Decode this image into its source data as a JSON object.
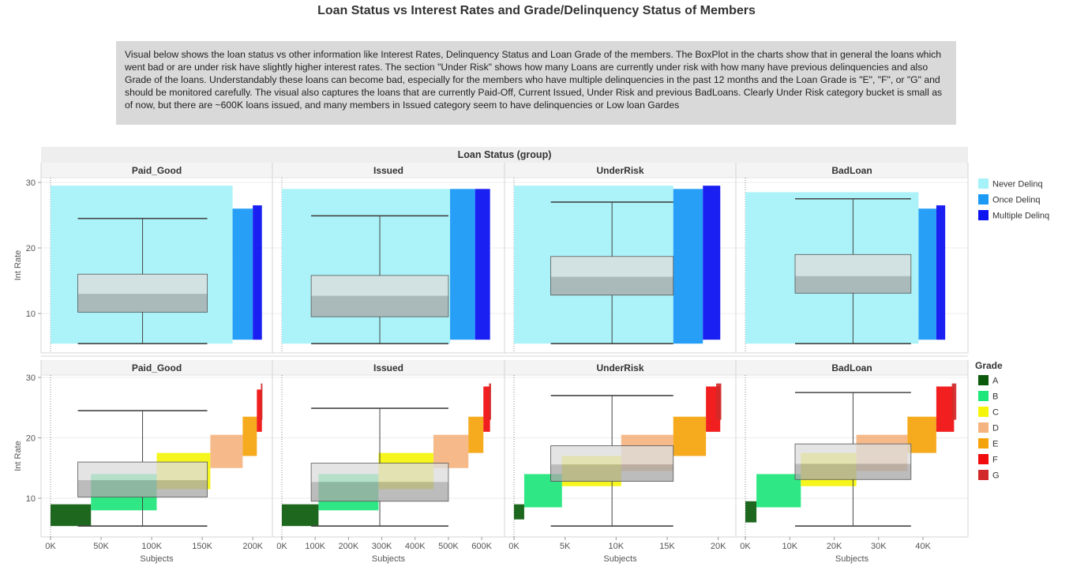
{
  "header": {
    "title": "Loan Status vs Interest Rates and Grade/Delinquency Status of Members",
    "description": "Visual below shows the loan status vs other information like Interest Rates, Delinquency Status and Loan Grade of the members. The BoxPlot in the charts show that in general the loans which went bad or are under risk have slightly higher interest rates. The section \"Under Risk\" shows how many Loans are currently under risk with how many have previous delinquencies and also Grade of the loans. Understandably these loans can become bad, especially for the members who have multiple delinquencies in the past 12 months and the Loan Grade is \"E\", \"F\", or \"G\" and should be monitored carefully. The visual also captures the loans that are currently Paid-Off, Current Issued, Under Risk and previous BadLoans. Clearly Under Risk category bucket is small as of now, but there are ~600K loans issued, and many members in Issued category seem to have delinquencies or Low loan Gardes"
  },
  "colors": {
    "Never Delinq": "#a6f2f9",
    "Once Delinq": "#1b9af5",
    "Multiple Delinq": "#0d14f0",
    "A": "#0b5a0b",
    "B": "#1de67b",
    "C": "#f5f50b",
    "D": "#f5b37f",
    "E": "#f5a30b",
    "F": "#f00c0c",
    "G": "#d22a2a"
  },
  "chart_data": [
    {
      "type": "scatter",
      "group_header": "Loan Status (group)",
      "panels": [
        "Paid_Good",
        "Issued",
        "UnderRisk",
        "BadLoan"
      ],
      "ylabel": "Int Rate",
      "ylim": [
        5,
        31
      ],
      "yticks": [
        10,
        20,
        30
      ],
      "grid": true,
      "legend": {
        "placement": "right",
        "title": "",
        "entries": [
          "Never Delinq",
          "Once Delinq",
          "Multiple Delinq"
        ]
      },
      "bands": [
        {
          "panel": "Paid_Good",
          "xmax": 210000,
          "segments": [
            {
              "cat": "Never Delinq",
              "x0": 0,
              "x1": 180000,
              "ymin": 5.4,
              "ymax": 29.5
            },
            {
              "cat": "Once Delinq",
              "x0": 180000,
              "x1": 200000,
              "ymin": 6,
              "ymax": 26
            },
            {
              "cat": "Multiple Delinq",
              "x0": 200000,
              "x1": 209000,
              "ymin": 6,
              "ymax": 26.5
            }
          ]
        },
        {
          "panel": "Issued",
          "xmax": 640000,
          "segments": [
            {
              "cat": "Never Delinq",
              "x0": 0,
              "x1": 505000,
              "ymin": 5.4,
              "ymax": 29
            },
            {
              "cat": "Once Delinq",
              "x0": 505000,
              "x1": 580000,
              "ymin": 6,
              "ymax": 29
            },
            {
              "cat": "Multiple Delinq",
              "x0": 580000,
              "x1": 625000,
              "ymin": 6,
              "ymax": 29
            }
          ]
        },
        {
          "panel": "UnderRisk",
          "xmax": 20800,
          "segments": [
            {
              "cat": "Never Delinq",
              "x0": 0,
              "x1": 15600,
              "ymin": 5.4,
              "ymax": 29.5
            },
            {
              "cat": "Once Delinq",
              "x0": 15600,
              "x1": 18500,
              "ymin": 5.4,
              "ymax": 29
            },
            {
              "cat": "Multiple Delinq",
              "x0": 18500,
              "x1": 20200,
              "ymin": 6,
              "ymax": 29.5
            }
          ]
        },
        {
          "panel": "BadLoan",
          "xmax": 48000,
          "segments": [
            {
              "cat": "Never Delinq",
              "x0": 0,
              "x1": 39000,
              "ymin": 5.4,
              "ymax": 28.5
            },
            {
              "cat": "Once Delinq",
              "x0": 39000,
              "x1": 43000,
              "ymin": 6,
              "ymax": 26
            },
            {
              "cat": "Multiple Delinq",
              "x0": 43000,
              "x1": 45000,
              "ymin": 6,
              "ymax": 26.5
            }
          ]
        }
      ],
      "boxplots": [
        {
          "panel": "Paid_Good",
          "x0": 27000,
          "x1": 155000,
          "lower_whisker": 5.4,
          "q1": 10.2,
          "median": 13.0,
          "q3": 16.0,
          "upper_whisker": 24.5
        },
        {
          "panel": "Issued",
          "x0": 88000,
          "x1": 500000,
          "lower_whisker": 5.4,
          "q1": 9.5,
          "median": 12.7,
          "q3": 15.8,
          "upper_whisker": 24.9
        },
        {
          "panel": "UnderRisk",
          "x0": 3600,
          "x1": 15600,
          "lower_whisker": 5.4,
          "q1": 12.8,
          "median": 15.6,
          "q3": 18.7,
          "upper_whisker": 27.0
        },
        {
          "panel": "BadLoan",
          "x0": 11200,
          "x1": 37300,
          "lower_whisker": 5.4,
          "q1": 13.1,
          "median": 15.7,
          "q3": 19.0,
          "upper_whisker": 27.5
        }
      ]
    },
    {
      "type": "scatter",
      "panels": [
        "Paid_Good",
        "Issued",
        "UnderRisk",
        "BadLoan"
      ],
      "ylabel": "Int Rate",
      "xlabel": "Subjects",
      "ylim": [
        5,
        31
      ],
      "yticks": [
        10,
        20,
        30
      ],
      "grid": true,
      "legend": {
        "placement": "right",
        "title": "Grade",
        "entries": [
          "A",
          "B",
          "C",
          "D",
          "E",
          "F",
          "G"
        ]
      },
      "xaxes": [
        {
          "panel": "Paid_Good",
          "xmax": 210000,
          "ticks": [
            0,
            50000,
            100000,
            150000,
            200000
          ],
          "tick_labels": [
            "0K",
            "50K",
            "100K",
            "150K",
            "200K"
          ]
        },
        {
          "panel": "Issued",
          "xmax": 640000,
          "ticks": [
            0,
            100000,
            200000,
            300000,
            400000,
            500000,
            600000
          ],
          "tick_labels": [
            "0K",
            "100K",
            "200K",
            "300K",
            "400K",
            "500K",
            "600K"
          ]
        },
        {
          "panel": "UnderRisk",
          "xmax": 20800,
          "ticks": [
            0,
            5000,
            10000,
            15000,
            20000
          ],
          "tick_labels": [
            "0K",
            "5K",
            "10K",
            "15K",
            "20K"
          ]
        },
        {
          "panel": "BadLoan",
          "xmax": 48000,
          "ticks": [
            0,
            10000,
            20000,
            30000,
            40000
          ],
          "tick_labels": [
            "0K",
            "10K",
            "20K",
            "30K",
            "40K"
          ]
        }
      ],
      "grade_bands": [
        {
          "panel": "Paid_Good",
          "segments": [
            {
              "grade": "A",
              "x0": 0,
              "x1": 40000,
              "ymin": 5.4,
              "ymax": 9
            },
            {
              "grade": "B",
              "x0": 40000,
              "x1": 105000,
              "ymin": 8,
              "ymax": 14
            },
            {
              "grade": "C",
              "x0": 105000,
              "x1": 158000,
              "ymin": 11.5,
              "ymax": 17.5
            },
            {
              "grade": "D",
              "x0": 158000,
              "x1": 190000,
              "ymin": 15,
              "ymax": 20.5
            },
            {
              "grade": "E",
              "x0": 190000,
              "x1": 204000,
              "ymin": 17,
              "ymax": 23.5
            },
            {
              "grade": "F",
              "x0": 204000,
              "x1": 209000,
              "ymin": 21,
              "ymax": 28
            },
            {
              "grade": "G",
              "x0": 208000,
              "x1": 209500,
              "ymin": 23,
              "ymax": 29
            }
          ]
        },
        {
          "panel": "Issued",
          "segments": [
            {
              "grade": "A",
              "x0": 0,
              "x1": 110000,
              "ymin": 5.4,
              "ymax": 9
            },
            {
              "grade": "B",
              "x0": 110000,
              "x1": 290000,
              "ymin": 8,
              "ymax": 14
            },
            {
              "grade": "C",
              "x0": 290000,
              "x1": 455000,
              "ymin": 11.5,
              "ymax": 17.5
            },
            {
              "grade": "D",
              "x0": 455000,
              "x1": 560000,
              "ymin": 15,
              "ymax": 20.5
            },
            {
              "grade": "E",
              "x0": 560000,
              "x1": 605000,
              "ymin": 17.5,
              "ymax": 23.5
            },
            {
              "grade": "F",
              "x0": 605000,
              "x1": 625000,
              "ymin": 21,
              "ymax": 28.5
            },
            {
              "grade": "G",
              "x0": 622000,
              "x1": 628000,
              "ymin": 23,
              "ymax": 29
            }
          ]
        },
        {
          "panel": "UnderRisk",
          "segments": [
            {
              "grade": "A",
              "x0": 0,
              "x1": 1000,
              "ymin": 6.5,
              "ymax": 9
            },
            {
              "grade": "B",
              "x0": 1000,
              "x1": 4700,
              "ymin": 8.5,
              "ymax": 14
            },
            {
              "grade": "C",
              "x0": 4700,
              "x1": 10500,
              "ymin": 12,
              "ymax": 17
            },
            {
              "grade": "D",
              "x0": 10500,
              "x1": 15600,
              "ymin": 14.5,
              "ymax": 20.5
            },
            {
              "grade": "E",
              "x0": 15600,
              "x1": 18800,
              "ymin": 17,
              "ymax": 23.5
            },
            {
              "grade": "F",
              "x0": 18800,
              "x1": 20200,
              "ymin": 21,
              "ymax": 28.5
            },
            {
              "grade": "G",
              "x0": 19800,
              "x1": 20300,
              "ymin": 23,
              "ymax": 29
            }
          ]
        },
        {
          "panel": "BadLoan",
          "segments": [
            {
              "grade": "A",
              "x0": 0,
              "x1": 2500,
              "ymin": 6,
              "ymax": 9.5
            },
            {
              "grade": "B",
              "x0": 2500,
              "x1": 12500,
              "ymin": 8.5,
              "ymax": 14
            },
            {
              "grade": "C",
              "x0": 12500,
              "x1": 25000,
              "ymin": 12,
              "ymax": 17.5
            },
            {
              "grade": "D",
              "x0": 25000,
              "x1": 36500,
              "ymin": 14.5,
              "ymax": 20.5
            },
            {
              "grade": "E",
              "x0": 36500,
              "x1": 43000,
              "ymin": 17.5,
              "ymax": 23.5
            },
            {
              "grade": "F",
              "x0": 43000,
              "x1": 47000,
              "ymin": 21,
              "ymax": 28.5
            },
            {
              "grade": "G",
              "x0": 46500,
              "x1": 47500,
              "ymin": 23,
              "ymax": 29
            }
          ]
        }
      ],
      "boxplots": [
        {
          "panel": "Paid_Good",
          "x0": 27000,
          "x1": 155000,
          "lower_whisker": 5.4,
          "q1": 10.2,
          "median": 13.0,
          "q3": 16.0,
          "upper_whisker": 24.5
        },
        {
          "panel": "Issued",
          "x0": 88000,
          "x1": 500000,
          "lower_whisker": 5.4,
          "q1": 9.5,
          "median": 12.7,
          "q3": 15.8,
          "upper_whisker": 24.9
        },
        {
          "panel": "UnderRisk",
          "x0": 3600,
          "x1": 15600,
          "lower_whisker": 5.4,
          "q1": 12.8,
          "median": 15.6,
          "q3": 18.7,
          "upper_whisker": 27.0
        },
        {
          "panel": "BadLoan",
          "x0": 11200,
          "x1": 37300,
          "lower_whisker": 5.4,
          "q1": 13.1,
          "median": 15.7,
          "q3": 19.0,
          "upper_whisker": 27.5
        }
      ]
    }
  ]
}
